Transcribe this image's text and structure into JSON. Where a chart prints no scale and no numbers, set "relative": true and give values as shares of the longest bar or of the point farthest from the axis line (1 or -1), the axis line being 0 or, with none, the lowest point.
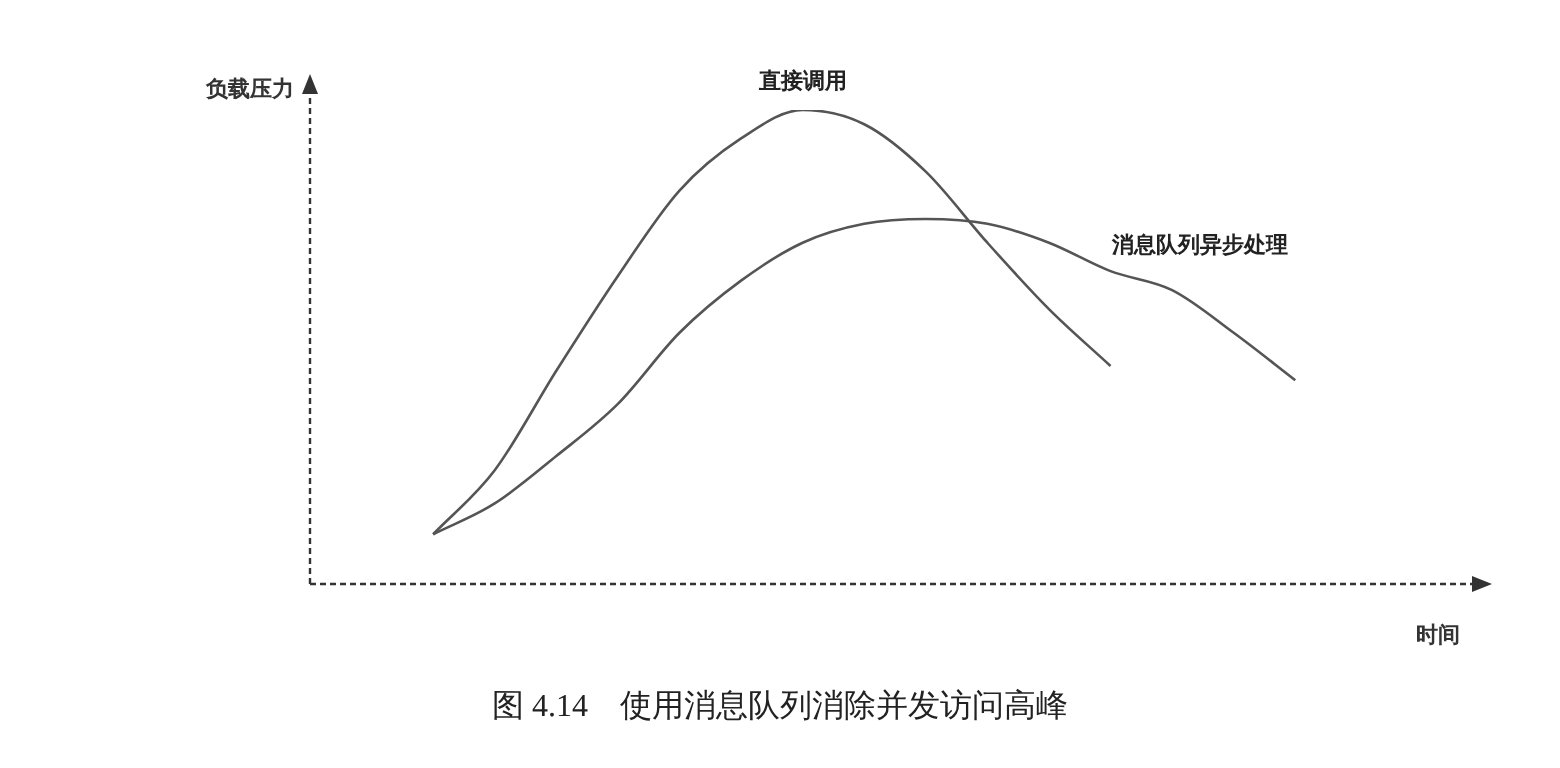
{
  "chart_data": {
    "type": "line",
    "relative": true,
    "ylabel": "负载压力",
    "xlabel": "时间",
    "annotations": [
      "图 4.14　使用消息队列消除并发访问高峰"
    ],
    "legend": false,
    "marker": "none",
    "categories": [
      null,
      null,
      null,
      null,
      null,
      null,
      null,
      null,
      null,
      null,
      null,
      null,
      null,
      null,
      null,
      null,
      null,
      null,
      null,
      null
    ],
    "series": [
      {
        "name": "直接调用",
        "color": "#555555",
        "values": [
          null,
          null,
          0.105,
          0.24,
          0.45,
          0.65,
          0.83,
          0.94,
          1,
          0.97,
          0.87,
          0.72,
          0.58,
          0.46,
          null,
          null,
          null,
          null,
          null,
          null
        ]
      },
      {
        "name": "消息队列异步处理",
        "color": "#555555",
        "values": [
          null,
          null,
          0.105,
          0.17,
          0.27,
          0.38,
          0.53,
          0.64,
          0.72,
          0.76,
          0.77,
          0.76,
          0.72,
          0.66,
          0.62,
          0.53,
          0.43,
          null,
          null,
          null
        ]
      }
    ]
  }
}
